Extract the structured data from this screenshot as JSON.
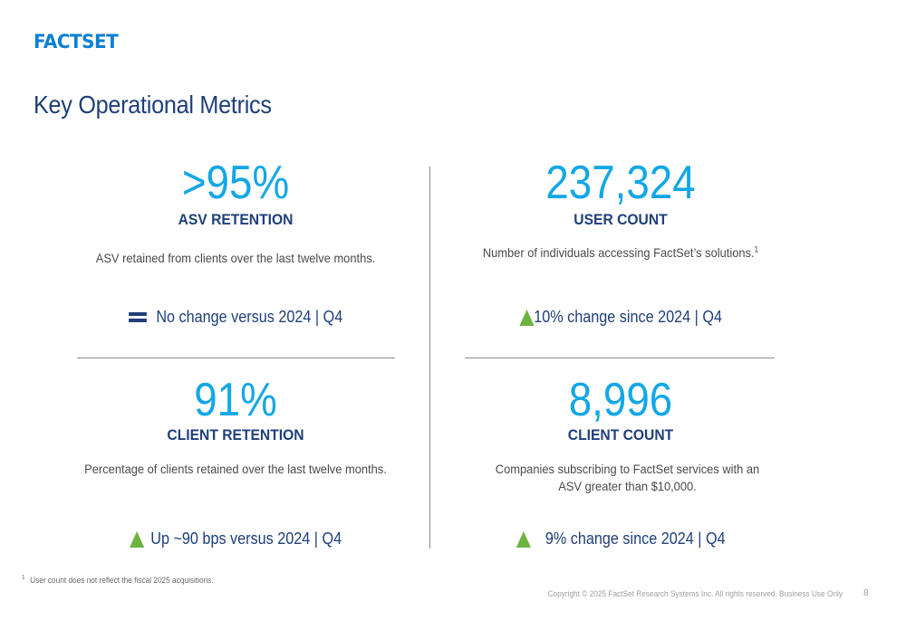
{
  "logo": "FACTSET",
  "title": "Key Operational Metrics",
  "metrics": [
    {
      "value": ">95%",
      "label": "ASV RETENTION",
      "description": "ASV retained from clients over the last twelve months.",
      "change": "No change versus 2024 | Q4",
      "change_icon": "equals-icon"
    },
    {
      "value": "237,324",
      "label": "USER COUNT",
      "description": "Number of individuals accessing FactSet’s solutions.",
      "description_sup": "1",
      "change": "10% change since 2024 | Q4",
      "change_icon": "up-triangle-icon"
    },
    {
      "value": "91%",
      "label": "CLIENT RETENTION",
      "description": "Percentage of clients retained over the last twelve months.",
      "change": "Up ~90 bps versus 2024 | Q4",
      "change_icon": "up-triangle-icon"
    },
    {
      "value": "8,996",
      "label": "CLIENT COUNT",
      "description_line1": "Companies subscribing to FactSet services with an",
      "description_line2": "ASV greater than $10,000.",
      "change": "9% change since 2024 | Q4",
      "change_icon": "up-triangle-icon"
    }
  ],
  "footnote": {
    "marker": "1",
    "text": "User count does not reflect the fiscal 2025 acquisitions."
  },
  "copyright": "Copyright © 2025 FactSet Research Systems Inc. All rights reserved. Business Use Only",
  "page_number": "8",
  "colors": {
    "brand_blue": "#0a7fd3",
    "metric_value": "#13a7e5",
    "heading_navy": "#1f3f7a",
    "up_green": "#6cb33f"
  }
}
